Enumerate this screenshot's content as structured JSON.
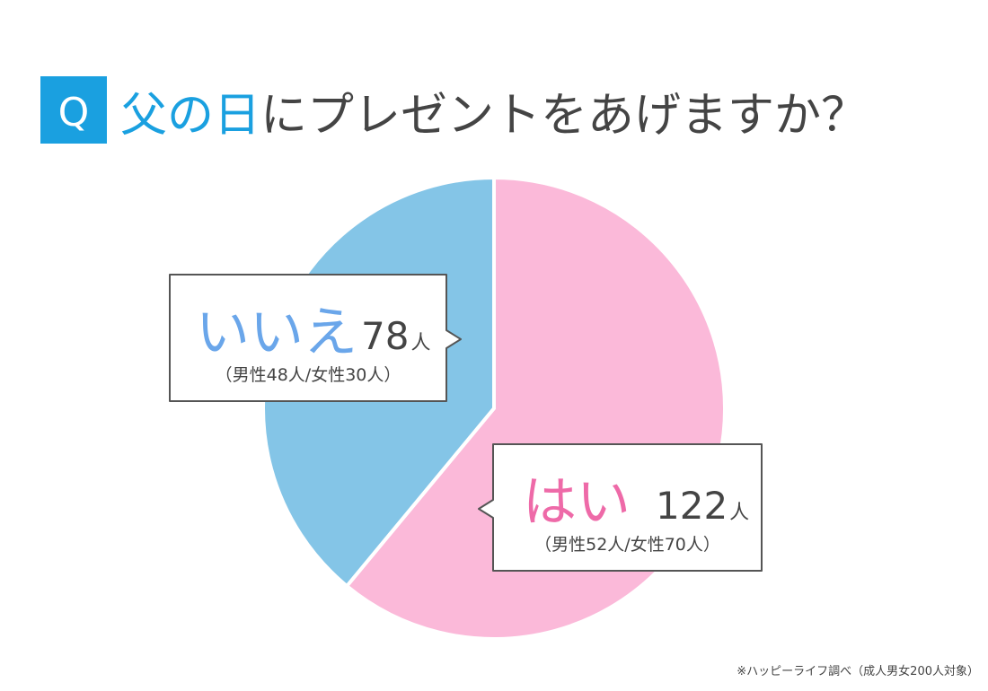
{
  "chart_data": {
    "type": "pie",
    "badge": "Q",
    "title_parts": [
      "父の日",
      "にプレゼントをあげますか？"
    ],
    "categories": [
      "はい",
      "いいえ"
    ],
    "values": [
      122,
      78
    ],
    "colors": [
      "#fbb9d9",
      "#84c5e7"
    ],
    "unit": "人",
    "details": [
      "（男性52人/女性70人）",
      "（男性48人/女性30人）"
    ],
    "source": "※ハッピーライフ調べ（成人男女200人対象）"
  }
}
